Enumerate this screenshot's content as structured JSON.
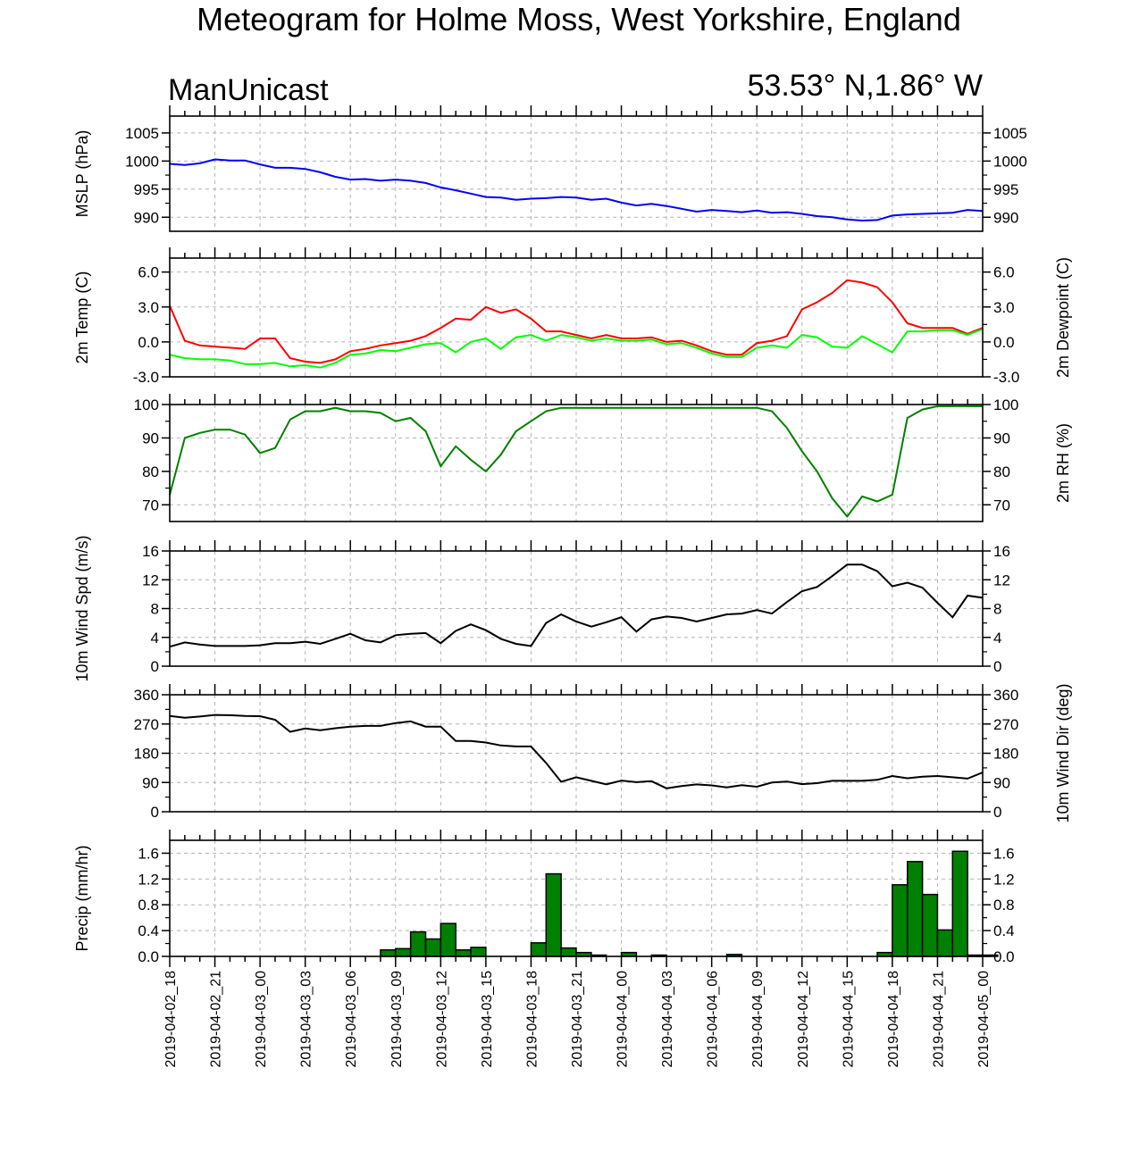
{
  "title": "Meteogram for Holme Moss, West Yorkshire, England",
  "left_subtitle": "ManUnicast",
  "right_subtitle": "53.53° N,1.86° W",
  "chart_data": [
    {
      "type": "line",
      "ylabel": "MSLP (hPa)",
      "ylim": [
        987.5,
        1008
      ],
      "yticks": [
        "1005",
        "1000",
        "995",
        "990"
      ],
      "grid": true,
      "series": [
        {
          "color": "#0000ff",
          "x": [
            0,
            1,
            2,
            3,
            4,
            5,
            6,
            7,
            8,
            9,
            10,
            11,
            12,
            13,
            14,
            15,
            16,
            17,
            18,
            19,
            20,
            21,
            22,
            23,
            24,
            25,
            26,
            27,
            28,
            29,
            30,
            31,
            32,
            33,
            34,
            35,
            36,
            37,
            38,
            39,
            40,
            41,
            42,
            43,
            44,
            45,
            46,
            47,
            48,
            49,
            50,
            51,
            52,
            53,
            54
          ],
          "y": [
            999.5,
            999.3,
            999.6,
            1000.3,
            1000.1,
            1000.1,
            999.4,
            998.8,
            998.8,
            998.6,
            998.0,
            997.2,
            996.7,
            996.8,
            996.5,
            996.7,
            996.5,
            996.1,
            995.3,
            994.8,
            994.2,
            993.6,
            993.5,
            993.1,
            993.3,
            993.4,
            993.6,
            993.5,
            993.1,
            993.3,
            992.6,
            992.1,
            992.4,
            992.0,
            991.5,
            991.0,
            991.3,
            991.1,
            990.9,
            991.2,
            990.8,
            990.9,
            990.6,
            990.2,
            990.0,
            989.6,
            989.4,
            989.5,
            990.3,
            990.5,
            990.6,
            990.7,
            990.8,
            991.3,
            991.1
          ]
        }
      ]
    },
    {
      "type": "line",
      "ylabel": "2m Temp (C)",
      "ylabel_right": "2m Dewpoint (C)",
      "ylim": [
        -3,
        7.2
      ],
      "yticks": [
        "6.0",
        "3.0",
        "0.0",
        "-3.0"
      ],
      "grid": true,
      "series": [
        {
          "color": "#ff0000",
          "x": [
            0,
            1,
            2,
            3,
            4,
            5,
            6,
            7,
            8,
            9,
            10,
            11,
            12,
            13,
            14,
            15,
            16,
            17,
            18,
            19,
            20,
            21,
            22,
            23,
            24,
            25,
            26,
            27,
            28,
            29,
            30,
            31,
            32,
            33,
            34,
            35,
            36,
            37,
            38,
            39,
            40,
            41,
            42,
            43,
            44,
            45,
            46,
            47,
            48,
            49,
            50,
            51,
            52,
            53,
            54
          ],
          "y": [
            3.1,
            0.1,
            -0.3,
            -0.4,
            -0.5,
            -0.6,
            0.3,
            0.3,
            -1.4,
            -1.7,
            -1.8,
            -1.5,
            -0.8,
            -0.6,
            -0.3,
            -0.1,
            0.1,
            0.5,
            1.2,
            2.0,
            1.9,
            3.0,
            2.5,
            2.8,
            2.0,
            0.9,
            0.9,
            0.6,
            0.3,
            0.6,
            0.3,
            0.3,
            0.4,
            0.0,
            0.1,
            -0.3,
            -0.8,
            -1.1,
            -1.1,
            -0.1,
            0.1,
            0.5,
            2.8,
            3.4,
            4.2,
            5.3,
            5.1,
            4.7,
            3.4,
            1.6,
            1.2,
            1.2,
            1.2,
            0.7,
            1.2
          ]
        },
        {
          "color": "#00ff00",
          "x": [
            0,
            1,
            2,
            3,
            4,
            5,
            6,
            7,
            8,
            9,
            10,
            11,
            12,
            13,
            14,
            15,
            16,
            17,
            18,
            19,
            20,
            21,
            22,
            23,
            24,
            25,
            26,
            27,
            28,
            29,
            30,
            31,
            32,
            33,
            34,
            35,
            36,
            37,
            38,
            39,
            40,
            41,
            42,
            43,
            44,
            45,
            46,
            47,
            48,
            49,
            50,
            51,
            52,
            53,
            54
          ],
          "y": [
            -1.1,
            -1.4,
            -1.5,
            -1.5,
            -1.6,
            -1.9,
            -1.9,
            -1.8,
            -2.1,
            -2.0,
            -2.2,
            -1.8,
            -1.1,
            -1.0,
            -0.7,
            -0.8,
            -0.5,
            -0.2,
            -0.1,
            -0.9,
            0.0,
            0.3,
            -0.6,
            0.4,
            0.6,
            0.1,
            0.6,
            0.4,
            0.1,
            0.3,
            0.1,
            0.1,
            0.2,
            -0.2,
            -0.1,
            -0.5,
            -1.0,
            -1.3,
            -1.3,
            -0.5,
            -0.3,
            -0.5,
            0.6,
            0.4,
            -0.4,
            -0.5,
            0.5,
            -0.2,
            -0.9,
            0.9,
            0.9,
            1.0,
            1.0,
            0.6,
            1.1
          ]
        }
      ]
    },
    {
      "type": "line",
      "ylabel_right": "2m RH (%)",
      "ylim": [
        65,
        100
      ],
      "yticks": [
        "100",
        "90",
        "80",
        "70"
      ],
      "grid": true,
      "series": [
        {
          "color": "#008000",
          "x": [
            0,
            1,
            2,
            3,
            4,
            5,
            6,
            7,
            8,
            9,
            10,
            11,
            12,
            13,
            14,
            15,
            16,
            17,
            18,
            19,
            20,
            21,
            22,
            23,
            24,
            25,
            26,
            27,
            28,
            29,
            30,
            31,
            32,
            33,
            34,
            35,
            36,
            37,
            38,
            39,
            40,
            41,
            42,
            43,
            44,
            45,
            46,
            47,
            48,
            49,
            50,
            51,
            52,
            53,
            54
          ],
          "y": [
            73,
            90,
            91.5,
            92.5,
            92.5,
            91,
            85.5,
            87,
            95.5,
            98,
            98,
            99,
            98,
            98,
            97.5,
            95,
            96,
            92,
            81.5,
            87.5,
            83.5,
            80,
            85,
            92,
            95,
            98,
            99,
            99,
            99,
            99,
            99,
            99,
            99,
            99,
            99,
            99,
            99,
            99,
            99,
            99,
            98,
            93,
            86,
            80,
            72,
            66.5,
            72.5,
            71,
            73,
            96,
            98.5,
            99.5,
            99.5,
            99.5,
            99.5
          ]
        }
      ]
    },
    {
      "type": "line",
      "ylabel": "10m Wind Spd (m/s)",
      "ylim": [
        0,
        16
      ],
      "yticks": [
        "16",
        "12",
        "8",
        "4",
        "0"
      ],
      "grid": true,
      "series": [
        {
          "color": "#000000",
          "x": [
            0,
            1,
            2,
            3,
            4,
            5,
            6,
            7,
            8,
            9,
            10,
            11,
            12,
            13,
            14,
            15,
            16,
            17,
            18,
            19,
            20,
            21,
            22,
            23,
            24,
            25,
            26,
            27,
            28,
            29,
            30,
            31,
            32,
            33,
            34,
            35,
            36,
            37,
            38,
            39,
            40,
            41,
            42,
            43,
            44,
            45,
            46,
            47,
            48,
            49,
            50,
            51,
            52,
            53,
            54
          ],
          "y": [
            2.7,
            3.3,
            3.0,
            2.8,
            2.8,
            2.8,
            2.9,
            3.2,
            3.2,
            3.4,
            3.1,
            3.8,
            4.5,
            3.6,
            3.3,
            4.3,
            4.5,
            4.6,
            3.2,
            4.9,
            5.8,
            5.0,
            3.8,
            3.1,
            2.8,
            6.0,
            7.2,
            6.2,
            5.5,
            6.1,
            6.8,
            4.8,
            6.5,
            6.9,
            6.7,
            6.2,
            6.7,
            7.2,
            7.3,
            7.8,
            7.3,
            8.9,
            10.4,
            11.0,
            12.5,
            14.1,
            14.1,
            13.2,
            11.1,
            11.6,
            10.9,
            8.8,
            6.8,
            9.8,
            9.5
          ]
        }
      ]
    },
    {
      "type": "line",
      "ylabel_right": "10m Wind Dir (deg)",
      "ylim": [
        0,
        360
      ],
      "yticks": [
        "360",
        "270",
        "180",
        "90",
        "0"
      ],
      "grid": true,
      "series": [
        {
          "color": "#000000",
          "x": [
            0,
            1,
            2,
            3,
            4,
            5,
            6,
            7,
            8,
            9,
            10,
            11,
            12,
            13,
            14,
            15,
            16,
            17,
            18,
            19,
            20,
            21,
            22,
            23,
            24,
            25,
            26,
            27,
            28,
            29,
            30,
            31,
            32,
            33,
            34,
            35,
            36,
            37,
            38,
            39,
            40,
            41,
            42,
            43,
            44,
            45,
            46,
            47,
            48,
            49,
            50,
            51,
            52,
            53,
            54
          ],
          "y": [
            295,
            289,
            293,
            298,
            297,
            295,
            294,
            283,
            246,
            256,
            251,
            257,
            262,
            264,
            264,
            273,
            278,
            262,
            262,
            218,
            218,
            213,
            204,
            201,
            201,
            150,
            92,
            106,
            95,
            84,
            96,
            91,
            94,
            72,
            79,
            84,
            81,
            75,
            82,
            77,
            90,
            93,
            85,
            88,
            95,
            95,
            95,
            98,
            110,
            103,
            108,
            110,
            106,
            102,
            121
          ]
        }
      ]
    },
    {
      "type": "bar",
      "ylabel": "Precip (mm/hr)",
      "ylim": [
        0,
        1.8
      ],
      "yticks": [
        "1.6",
        "1.2",
        "0.8",
        "0.4",
        "0.0"
      ],
      "grid": true,
      "bar_color": "#008000",
      "x": [
        0,
        1,
        2,
        3,
        4,
        5,
        6,
        7,
        8,
        9,
        10,
        11,
        12,
        13,
        14,
        15,
        16,
        17,
        18,
        19,
        20,
        21,
        22,
        23,
        24,
        25,
        26,
        27,
        28,
        29,
        30,
        31,
        32,
        33,
        34,
        35,
        36,
        37,
        38,
        39,
        40,
        41,
        42,
        43,
        44,
        45,
        46,
        47,
        48,
        49,
        50,
        51,
        52,
        53,
        54
      ],
      "values": [
        0,
        0,
        0,
        0,
        0,
        0,
        0,
        0,
        0,
        0,
        0,
        0,
        0,
        0,
        0.1,
        0.12,
        0.38,
        0.27,
        0.51,
        0.1,
        0.14,
        0,
        0,
        0,
        0.21,
        1.28,
        0.13,
        0.06,
        0.02,
        0,
        0.06,
        0,
        0.02,
        0,
        0,
        0,
        0,
        0.03,
        0,
        0,
        0,
        0,
        0,
        0,
        0,
        0,
        0,
        0.06,
        1.11,
        1.47,
        0.96,
        0.41,
        1.63,
        0.02,
        0.02
      ]
    }
  ],
  "x_labels": [
    "2019-04-02_18",
    "2019-04-02_21",
    "2019-04-03_00",
    "2019-04-03_03",
    "2019-04-03_06",
    "2019-04-03_09",
    "2019-04-03_12",
    "2019-04-03_15",
    "2019-04-03_18",
    "2019-04-03_21",
    "2019-04-04_00",
    "2019-04-04_03",
    "2019-04-04_06",
    "2019-04-04_09",
    "2019-04-04_12",
    "2019-04-04_15",
    "2019-04-04_18",
    "2019-04-04_21",
    "2019-04-05_00"
  ]
}
